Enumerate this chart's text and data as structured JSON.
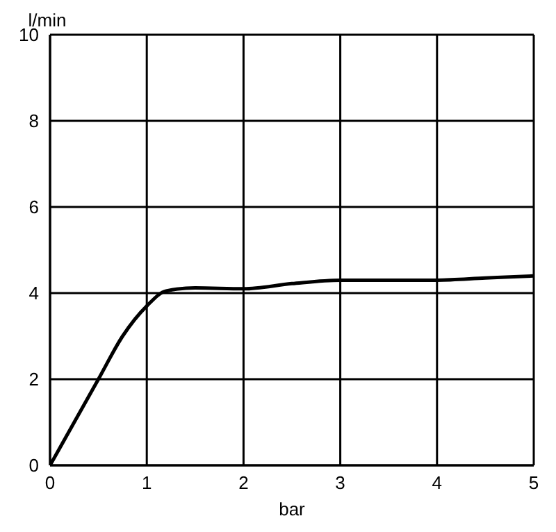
{
  "chart_data": {
    "type": "line",
    "xlabel": "bar",
    "ylabel": "l/min",
    "x": [
      0,
      0.25,
      0.5,
      0.75,
      1,
      1.2,
      1.5,
      2,
      2.5,
      3,
      3.5,
      4,
      4.5,
      5
    ],
    "series": [
      {
        "color": "#000000",
        "values": [
          0,
          1.0,
          2.0,
          3.0,
          3.7,
          4.05,
          4.12,
          4.1,
          4.22,
          4.3,
          4.3,
          4.3,
          4.35,
          4.4
        ]
      }
    ],
    "xlim": [
      0,
      5
    ],
    "xticks": [
      0,
      1,
      2,
      3,
      4,
      5
    ],
    "ylim": [
      0,
      10
    ],
    "yticks": [
      0,
      2,
      4,
      6,
      8,
      10
    ],
    "grid": true,
    "legend": false,
    "marker": "none",
    "line_style": "solid"
  }
}
